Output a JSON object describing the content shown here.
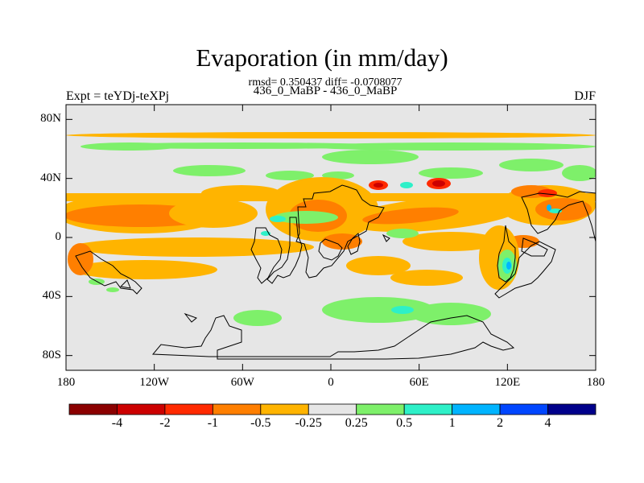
{
  "header": {
    "title": "Evaporation (in mm/day)",
    "stats": "rmsd= 0.350437 diff= -0.0708077",
    "subtitle": "436_0_MaBP - 436_0_MaBP",
    "experiment": "Expt = teYDj-teXPj",
    "season": "DJF"
  },
  "axes": {
    "y_ticks": [
      {
        "label": "80N",
        "lat": 80
      },
      {
        "label": "40N",
        "lat": 40
      },
      {
        "label": "0",
        "lat": 0
      },
      {
        "label": "40S",
        "lat": -40
      },
      {
        "label": "80S",
        "lat": -80
      }
    ],
    "x_ticks": [
      {
        "label": "180",
        "lon": -180
      },
      {
        "label": "120W",
        "lon": -120
      },
      {
        "label": "60W",
        "lon": -60
      },
      {
        "label": "0",
        "lon": 0
      },
      {
        "label": "60E",
        "lon": 60
      },
      {
        "label": "120E",
        "lon": 120
      },
      {
        "label": "180",
        "lon": 180
      }
    ],
    "lon_range": [
      -180,
      180
    ],
    "lat_range": [
      -90,
      90
    ]
  },
  "colorbar": {
    "colors": [
      "#8b0000",
      "#cc0000",
      "#ff2a00",
      "#ff7f00",
      "#ffb400",
      "#e6e6e6",
      "#7ef06a",
      "#2ef0c8",
      "#00b4ff",
      "#0046ff",
      "#00008b"
    ],
    "labels": [
      "-4",
      "-2",
      "-1",
      "-0.5",
      "-0.25",
      "0.25",
      "0.5",
      "1",
      "2",
      "4"
    ]
  },
  "chart_data": {
    "type": "heatmap",
    "title": "Evaporation (in mm/day)",
    "variable": "Evaporation difference (mm/day)",
    "levels": [
      -4,
      -2,
      -1,
      -0.5,
      -0.25,
      0.25,
      0.5,
      1,
      2,
      4
    ],
    "background_value_range": [
      -0.25,
      0.25
    ],
    "regions": [
      {
        "level": "-0.25 to -0.5",
        "lon": [
          -180,
          180
        ],
        "lat": [
          68,
          73
        ]
      },
      {
        "level": "0.25 to 0.5",
        "lon": [
          -180,
          180
        ],
        "lat": [
          60,
          65
        ]
      },
      {
        "level": "-0.25 to -0.5",
        "lon": [
          -180,
          -20
        ],
        "lat": [
          -30,
          30
        ]
      },
      {
        "level": "-0.5 to -1",
        "lon": [
          -180,
          -90
        ],
        "lat": [
          8,
          22
        ]
      },
      {
        "level": "-0.25 to -0.5",
        "lon": [
          0,
          180
        ],
        "lat": [
          -30,
          30
        ]
      },
      {
        "level": "-1 to -2",
        "lon": [
          30,
          40
        ],
        "lat": [
          34,
          38
        ]
      },
      {
        "level": "-1 to -2",
        "lon": [
          60,
          75
        ],
        "lat": [
          36,
          42
        ]
      },
      {
        "level": "0.25 to 0.5",
        "lon": [
          -30,
          110
        ],
        "lat": [
          -65,
          -40
        ]
      },
      {
        "level": "0.5 to 1",
        "lon": [
          110,
          120
        ],
        "lat": [
          -20,
          -5
        ]
      }
    ]
  }
}
